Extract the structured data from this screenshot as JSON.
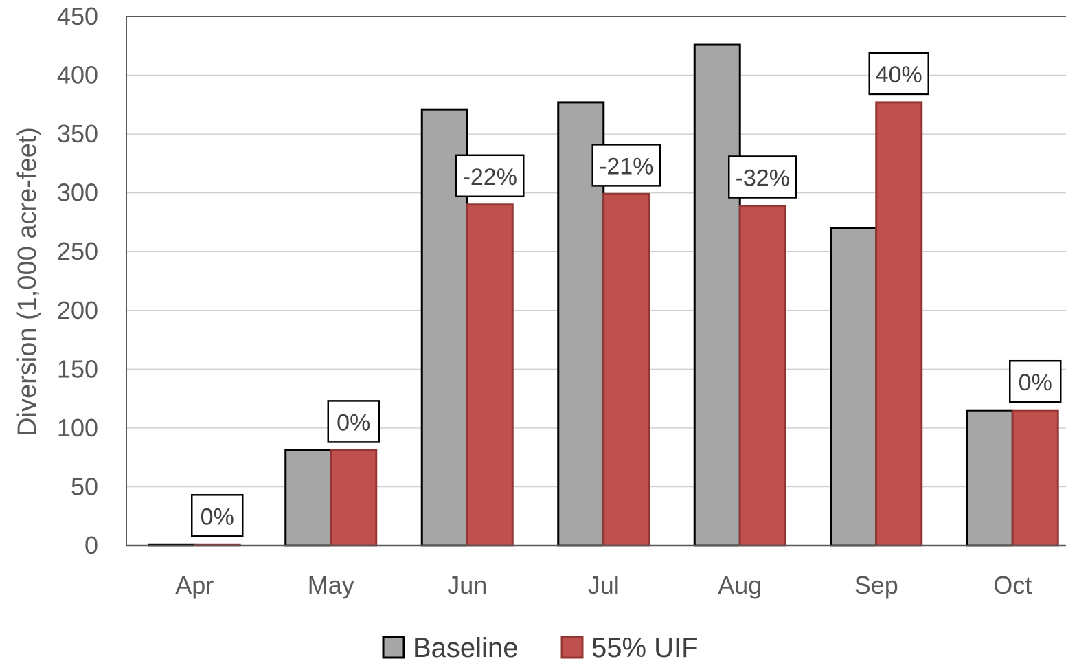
{
  "chart_data": {
    "type": "bar",
    "title": "",
    "xlabel": "",
    "ylabel": "Diversion (1,000 acre-feet)",
    "ylim": [
      0,
      450
    ],
    "yticks": [
      0,
      50,
      100,
      150,
      200,
      250,
      300,
      350,
      400,
      450
    ],
    "grid": true,
    "legend_position": "bottom",
    "categories": [
      "Apr",
      "May",
      "Jun",
      "Jul",
      "Aug",
      "Sep",
      "Oct"
    ],
    "series": [
      {
        "name": "Baseline",
        "color": "#a6a6a6",
        "edge_color": "#000000",
        "values": [
          1,
          81,
          371,
          377,
          426,
          270,
          115
        ]
      },
      {
        "name": "55% UIF",
        "color": "#c0504d",
        "edge_color": "#943634",
        "values": [
          1,
          81,
          290,
          299,
          289,
          377,
          115
        ]
      }
    ],
    "data_labels": [
      "0%",
      "0%",
      "-22%",
      "-21%",
      "-32%",
      "40%",
      "0%"
    ]
  }
}
